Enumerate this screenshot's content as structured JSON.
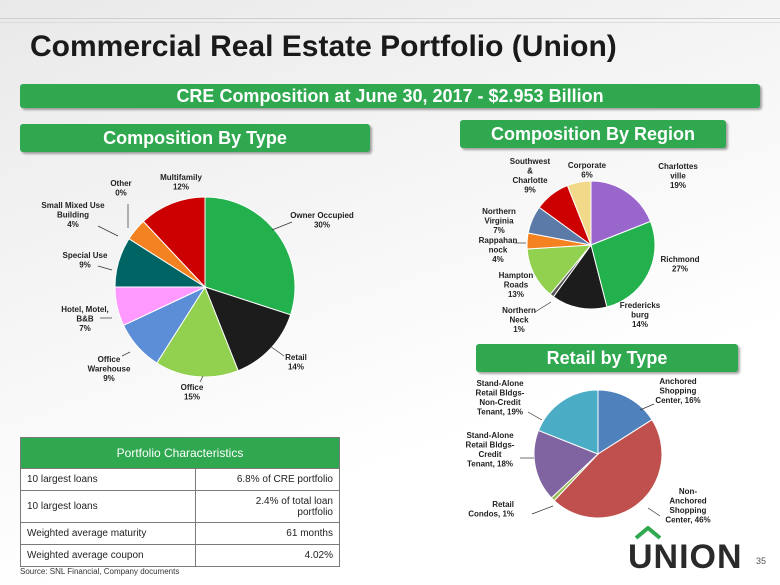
{
  "title": "Commercial Real Estate Portfolio (Union)",
  "banner_main": "CRE Composition at June 30, 2017 - $2.953 Billion",
  "section_type": "Composition By Type",
  "section_region": "Composition By Region",
  "section_retail": "Retail by Type",
  "chart_data": [
    {
      "type": "pie",
      "title": "Composition By Type",
      "slices": [
        {
          "label": [
            "Owner Occupied",
            "30%"
          ],
          "value": 30,
          "color": "#22b14c"
        },
        {
          "label": [
            "Retail",
            "14%"
          ],
          "value": 14,
          "color": "#1c1c1c"
        },
        {
          "label": [
            "Office",
            "15%"
          ],
          "value": 15,
          "color": "#92d050"
        },
        {
          "label": [
            "Office",
            "Warehouse",
            "9%"
          ],
          "value": 9,
          "color": "#5b8ed6"
        },
        {
          "label": [
            "Hotel, Motel,",
            "B&B",
            "7%"
          ],
          "value": 7,
          "color": "#ff99ff"
        },
        {
          "label": [
            "Special Use",
            "9%"
          ],
          "value": 9,
          "color": "#006464"
        },
        {
          "label": [
            "Small Mixed Use",
            "Building",
            "4%"
          ],
          "value": 4,
          "color": "#f58220"
        },
        {
          "label": [
            "Other",
            "0%"
          ],
          "value": 0,
          "color": "#999999"
        },
        {
          "label": [
            "Multifamily",
            "12%"
          ],
          "value": 12,
          "color": "#cc0000"
        }
      ]
    },
    {
      "type": "pie",
      "title": "Composition By Region",
      "slices": [
        {
          "label": [
            "Charlottes",
            "ville",
            "19%"
          ],
          "value": 19,
          "color": "#9966cc"
        },
        {
          "label": [
            "Richmond",
            "27%"
          ],
          "value": 27,
          "color": "#22b14c"
        },
        {
          "label": [
            "Fredericks",
            "burg",
            "14%"
          ],
          "value": 14,
          "color": "#1c1c1c"
        },
        {
          "label": [
            "Northern",
            "Neck",
            "1%"
          ],
          "value": 1,
          "color": "#555555"
        },
        {
          "label": [
            "Hampton",
            "Roads",
            "13%"
          ],
          "value": 13,
          "color": "#92d050"
        },
        {
          "label": [
            "Rappahan",
            "nock",
            "4%"
          ],
          "value": 4,
          "color": "#f58220"
        },
        {
          "label": [
            "Northern",
            "Virginia",
            "7%"
          ],
          "value": 7,
          "color": "#5b7aa8"
        },
        {
          "label": [
            "Southwest",
            "&",
            "Charlotte",
            "9%"
          ],
          "value": 9,
          "color": "#cc0000"
        },
        {
          "label": [
            "Corporate",
            "6%"
          ],
          "value": 6,
          "color": "#f2d98a"
        }
      ]
    },
    {
      "type": "pie",
      "title": "Retail by Type",
      "slices": [
        {
          "label": [
            "Anchored",
            "Shopping",
            "Center, 16%"
          ],
          "value": 16,
          "color": "#4f81bd"
        },
        {
          "label": [
            "Non-",
            "Anchored",
            "Shopping",
            "Center, 46%"
          ],
          "value": 46,
          "color": "#c0504d"
        },
        {
          "label": [
            "Retail",
            "Condos, 1%"
          ],
          "value": 1,
          "color": "#9bbb59"
        },
        {
          "label": [
            "Stand-Alone",
            "Retail Bldgs-",
            "Credit",
            "Tenant, 18%"
          ],
          "value": 18,
          "color": "#8064a2"
        },
        {
          "label": [
            "Stand-Alone",
            "Retail Bldgs-",
            "Non-Credit",
            "Tenant, 19%"
          ],
          "value": 19,
          "color": "#4bacc6"
        }
      ]
    }
  ],
  "portfolio": {
    "header": "Portfolio Characteristics",
    "rows": [
      {
        "label": "10 largest loans",
        "value": "6.8% of CRE portfolio"
      },
      {
        "label": "10 largest loans",
        "value_lines": [
          "2.4% of total loan",
          "portfolio"
        ]
      },
      {
        "label": "Weighted average maturity",
        "value": "61 months"
      },
      {
        "label": "Weighted average coupon",
        "value": "4.02%"
      }
    ]
  },
  "source": "Source: SNL Financial, Company documents",
  "logo_text": "UNION",
  "page_number": "35"
}
